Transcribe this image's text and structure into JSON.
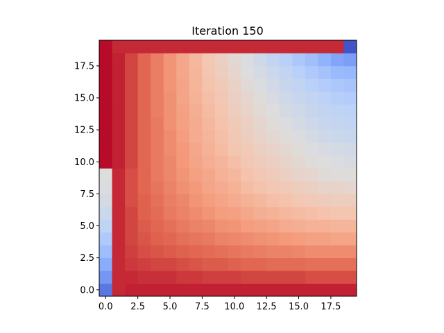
{
  "chart_data": {
    "type": "heatmap",
    "title": "Iteration 150",
    "xlabel": "",
    "ylabel": "",
    "grid": false,
    "colormap": "coolwarm",
    "origin": "lower",
    "value_range": [
      0,
      1
    ],
    "xlim": [
      -0.5,
      19.5
    ],
    "ylim": [
      -0.5,
      19.5
    ],
    "x_ticks": [
      0.0,
      2.5,
      5.0,
      7.5,
      10.0,
      12.5,
      15.0,
      17.5
    ],
    "y_ticks": [
      0.0,
      2.5,
      5.0,
      7.5,
      10.0,
      12.5,
      15.0,
      17.5
    ],
    "x_tick_labels": [
      "0.0",
      "2.5",
      "5.0",
      "7.5",
      "10.0",
      "12.5",
      "15.0",
      "17.5"
    ],
    "y_tick_labels": [
      "0.0",
      "2.5",
      "5.0",
      "7.5",
      "10.0",
      "12.5",
      "15.0",
      "17.5"
    ],
    "grid_shape": [
      20,
      20
    ],
    "values": [
      [
        0.1,
        0.95,
        0.96,
        0.96,
        0.96,
        0.96,
        0.96,
        0.96,
        0.96,
        0.96,
        0.96,
        0.96,
        0.96,
        0.96,
        0.96,
        0.96,
        0.96,
        0.96,
        0.96,
        0.96
      ],
      [
        0.18,
        0.95,
        0.95,
        0.94,
        0.94,
        0.94,
        0.93,
        0.93,
        0.92,
        0.92,
        0.92,
        0.91,
        0.91,
        0.91,
        0.91,
        0.91,
        0.9,
        0.9,
        0.9,
        0.9
      ],
      [
        0.24,
        0.95,
        0.93,
        0.92,
        0.91,
        0.91,
        0.9,
        0.89,
        0.88,
        0.88,
        0.87,
        0.86,
        0.86,
        0.85,
        0.85,
        0.85,
        0.84,
        0.84,
        0.84,
        0.84
      ],
      [
        0.3,
        0.95,
        0.92,
        0.9,
        0.89,
        0.88,
        0.87,
        0.86,
        0.85,
        0.84,
        0.83,
        0.82,
        0.81,
        0.8,
        0.8,
        0.79,
        0.78,
        0.78,
        0.78,
        0.78
      ],
      [
        0.35,
        0.95,
        0.91,
        0.89,
        0.87,
        0.86,
        0.84,
        0.83,
        0.82,
        0.8,
        0.79,
        0.78,
        0.77,
        0.76,
        0.75,
        0.74,
        0.73,
        0.73,
        0.72,
        0.72
      ],
      [
        0.4,
        0.95,
        0.91,
        0.88,
        0.86,
        0.84,
        0.82,
        0.8,
        0.79,
        0.77,
        0.76,
        0.74,
        0.73,
        0.72,
        0.7,
        0.69,
        0.68,
        0.68,
        0.67,
        0.67
      ],
      [
        0.44,
        0.95,
        0.91,
        0.87,
        0.85,
        0.82,
        0.8,
        0.78,
        0.76,
        0.74,
        0.73,
        0.71,
        0.69,
        0.68,
        0.66,
        0.65,
        0.64,
        0.63,
        0.62,
        0.62
      ],
      [
        0.47,
        0.95,
        0.9,
        0.87,
        0.84,
        0.81,
        0.79,
        0.76,
        0.74,
        0.72,
        0.7,
        0.68,
        0.66,
        0.64,
        0.63,
        0.61,
        0.6,
        0.59,
        0.58,
        0.58
      ],
      [
        0.49,
        0.95,
        0.9,
        0.86,
        0.83,
        0.8,
        0.77,
        0.75,
        0.72,
        0.7,
        0.68,
        0.65,
        0.63,
        0.61,
        0.6,
        0.58,
        0.57,
        0.55,
        0.55,
        0.54
      ],
      [
        0.5,
        0.95,
        0.9,
        0.86,
        0.82,
        0.79,
        0.76,
        0.73,
        0.71,
        0.68,
        0.66,
        0.63,
        0.61,
        0.59,
        0.57,
        0.55,
        0.54,
        0.52,
        0.51,
        0.51
      ],
      [
        0.99,
        0.96,
        0.91,
        0.86,
        0.82,
        0.79,
        0.75,
        0.72,
        0.69,
        0.67,
        0.64,
        0.61,
        0.59,
        0.57,
        0.55,
        0.53,
        0.51,
        0.5,
        0.49,
        0.48
      ],
      [
        0.99,
        0.96,
        0.91,
        0.86,
        0.82,
        0.78,
        0.75,
        0.71,
        0.68,
        0.65,
        0.62,
        0.6,
        0.57,
        0.55,
        0.53,
        0.51,
        0.49,
        0.48,
        0.47,
        0.46
      ],
      [
        0.99,
        0.96,
        0.91,
        0.86,
        0.82,
        0.78,
        0.74,
        0.7,
        0.67,
        0.64,
        0.61,
        0.58,
        0.55,
        0.53,
        0.51,
        0.49,
        0.47,
        0.45,
        0.44,
        0.43
      ],
      [
        0.99,
        0.96,
        0.91,
        0.86,
        0.82,
        0.77,
        0.73,
        0.7,
        0.66,
        0.63,
        0.6,
        0.57,
        0.54,
        0.51,
        0.49,
        0.47,
        0.45,
        0.43,
        0.42,
        0.41
      ],
      [
        0.99,
        0.96,
        0.91,
        0.86,
        0.81,
        0.77,
        0.73,
        0.69,
        0.65,
        0.62,
        0.58,
        0.55,
        0.52,
        0.5,
        0.47,
        0.45,
        0.43,
        0.41,
        0.4,
        0.39
      ],
      [
        0.99,
        0.96,
        0.91,
        0.86,
        0.81,
        0.77,
        0.72,
        0.68,
        0.64,
        0.61,
        0.57,
        0.54,
        0.51,
        0.48,
        0.45,
        0.43,
        0.41,
        0.39,
        0.37,
        0.36
      ],
      [
        0.99,
        0.96,
        0.91,
        0.86,
        0.81,
        0.76,
        0.72,
        0.67,
        0.63,
        0.6,
        0.56,
        0.52,
        0.49,
        0.46,
        0.43,
        0.41,
        0.38,
        0.36,
        0.34,
        0.33
      ],
      [
        0.99,
        0.96,
        0.91,
        0.86,
        0.81,
        0.76,
        0.71,
        0.67,
        0.62,
        0.58,
        0.54,
        0.5,
        0.47,
        0.44,
        0.41,
        0.38,
        0.35,
        0.32,
        0.29,
        0.28
      ],
      [
        0.99,
        0.96,
        0.91,
        0.86,
        0.81,
        0.76,
        0.71,
        0.66,
        0.61,
        0.57,
        0.53,
        0.49,
        0.45,
        0.41,
        0.38,
        0.34,
        0.31,
        0.26,
        0.22,
        0.2
      ],
      [
        0.99,
        0.95,
        0.95,
        0.95,
        0.95,
        0.95,
        0.95,
        0.95,
        0.95,
        0.95,
        0.95,
        0.95,
        0.95,
        0.95,
        0.95,
        0.95,
        0.95,
        0.95,
        0.95,
        0.02
      ]
    ]
  }
}
